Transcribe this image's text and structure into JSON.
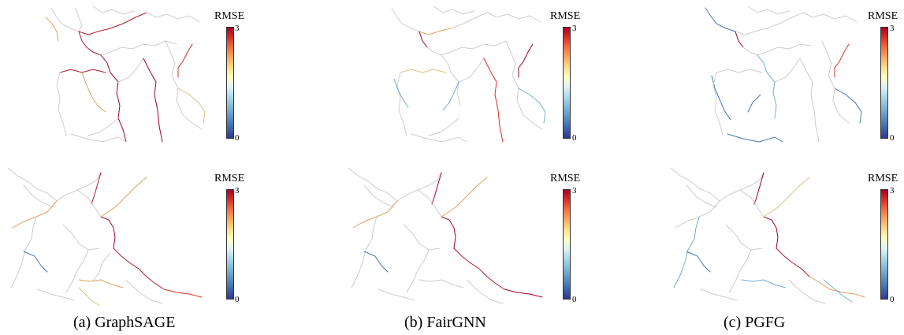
{
  "colorbar": {
    "title": "RMSE",
    "max_label": "3",
    "min_label": "0"
  },
  "colors": {
    "low": "#313695",
    "mid_low": "#74add1",
    "mid": "#ffffbf",
    "mid_high": "#fdae61",
    "high": "#a50026",
    "neutral": "#c8c8c8"
  },
  "captions": {
    "graphsage": "(a) GraphSAGE",
    "fairgnn": "(b) FairGNN",
    "pgfg": "(c) PGFG"
  }
}
